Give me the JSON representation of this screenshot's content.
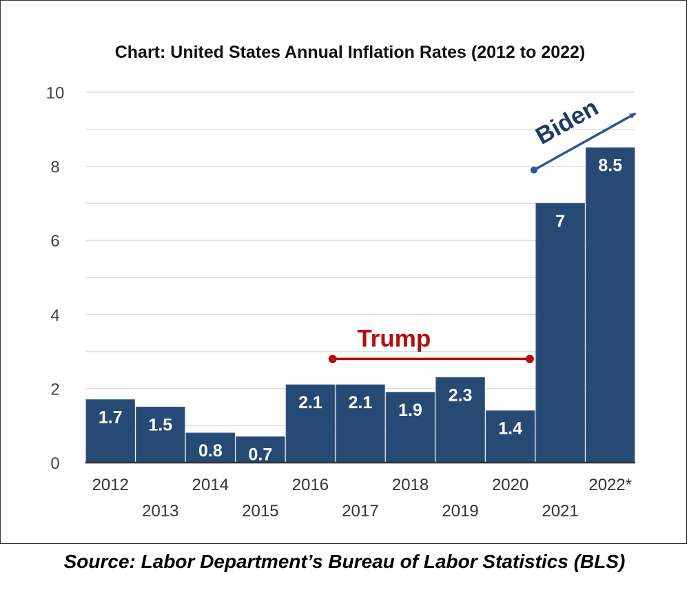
{
  "chart_data": {
    "type": "bar",
    "title": "Chart: United States Annual Inflation Rates (2012 to 2022)",
    "xlabel": "",
    "ylabel": "",
    "ylim": [
      0,
      10
    ],
    "yticks": [
      0,
      2,
      4,
      6,
      8,
      10
    ],
    "grid": true,
    "categories": [
      "2012",
      "2013",
      "2014",
      "2015",
      "2016",
      "2017",
      "2018",
      "2019",
      "2020",
      "2021",
      "2022*"
    ],
    "values": [
      1.7,
      1.5,
      0.8,
      0.7,
      2.1,
      2.1,
      1.9,
      2.3,
      1.4,
      7,
      8.5
    ],
    "data_labels": [
      "1.7",
      "1.5",
      "0.8",
      "0.7",
      "2.1",
      "2.1",
      "1.9",
      "2.3",
      "1.4",
      "7",
      "8.5"
    ],
    "bar_color": "#264a73",
    "annotations": [
      {
        "text": "Trump",
        "color": "#b50d0d",
        "type": "range-line",
        "from": "2017",
        "to": "2020",
        "y": 2.8
      },
      {
        "text": "Biden",
        "color": "#1d3a66",
        "type": "arrow",
        "from": "2021",
        "y_start": 7.9,
        "y_end": 9.5
      }
    ]
  },
  "source": "Source:  Labor Department’s Bureau of Labor Statistics (BLS)"
}
